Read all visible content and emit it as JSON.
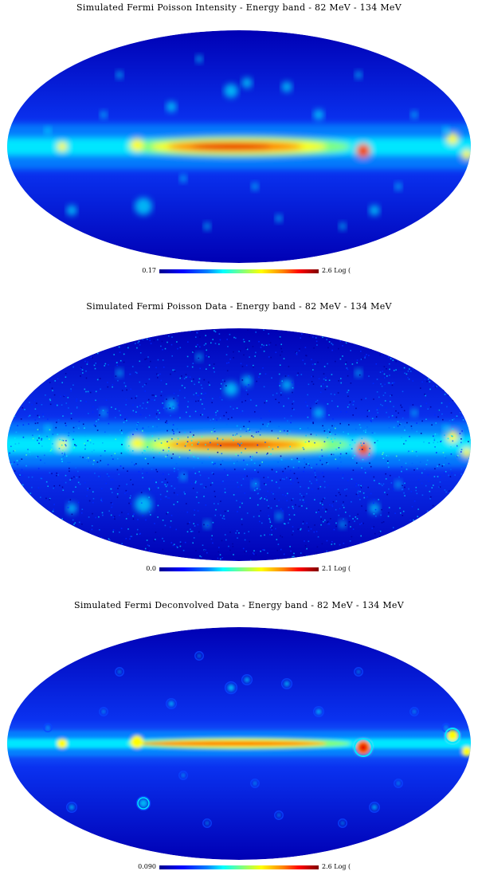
{
  "panels": [
    {
      "title": "Simulated Fermi Poisson Intensity - Energy band - 82 MeV - 134 MeV",
      "cbar_min": "0.17",
      "cbar_max": "2.6 Log (",
      "style": "smooth"
    },
    {
      "title": "Simulated Fermi Poisson Data - Energy band - 82 MeV - 134 MeV",
      "cbar_min": "0.0",
      "cbar_max": "2.1 Log (",
      "style": "noisy"
    },
    {
      "title": "Simulated Fermi Deconvolved Data - Energy band - 82 MeV - 134 MeV",
      "cbar_min": "0.090",
      "cbar_max": "2.6 Log (",
      "style": "deconvolved"
    }
  ],
  "colors": {
    "dark_blue": "#0000c8",
    "mid_blue": "#0a46ff",
    "cyan": "#00e6ff",
    "yellow": "#ffff00",
    "orange": "#ff7a00",
    "red": "#e60000",
    "dark_red": "#8a0000"
  }
}
